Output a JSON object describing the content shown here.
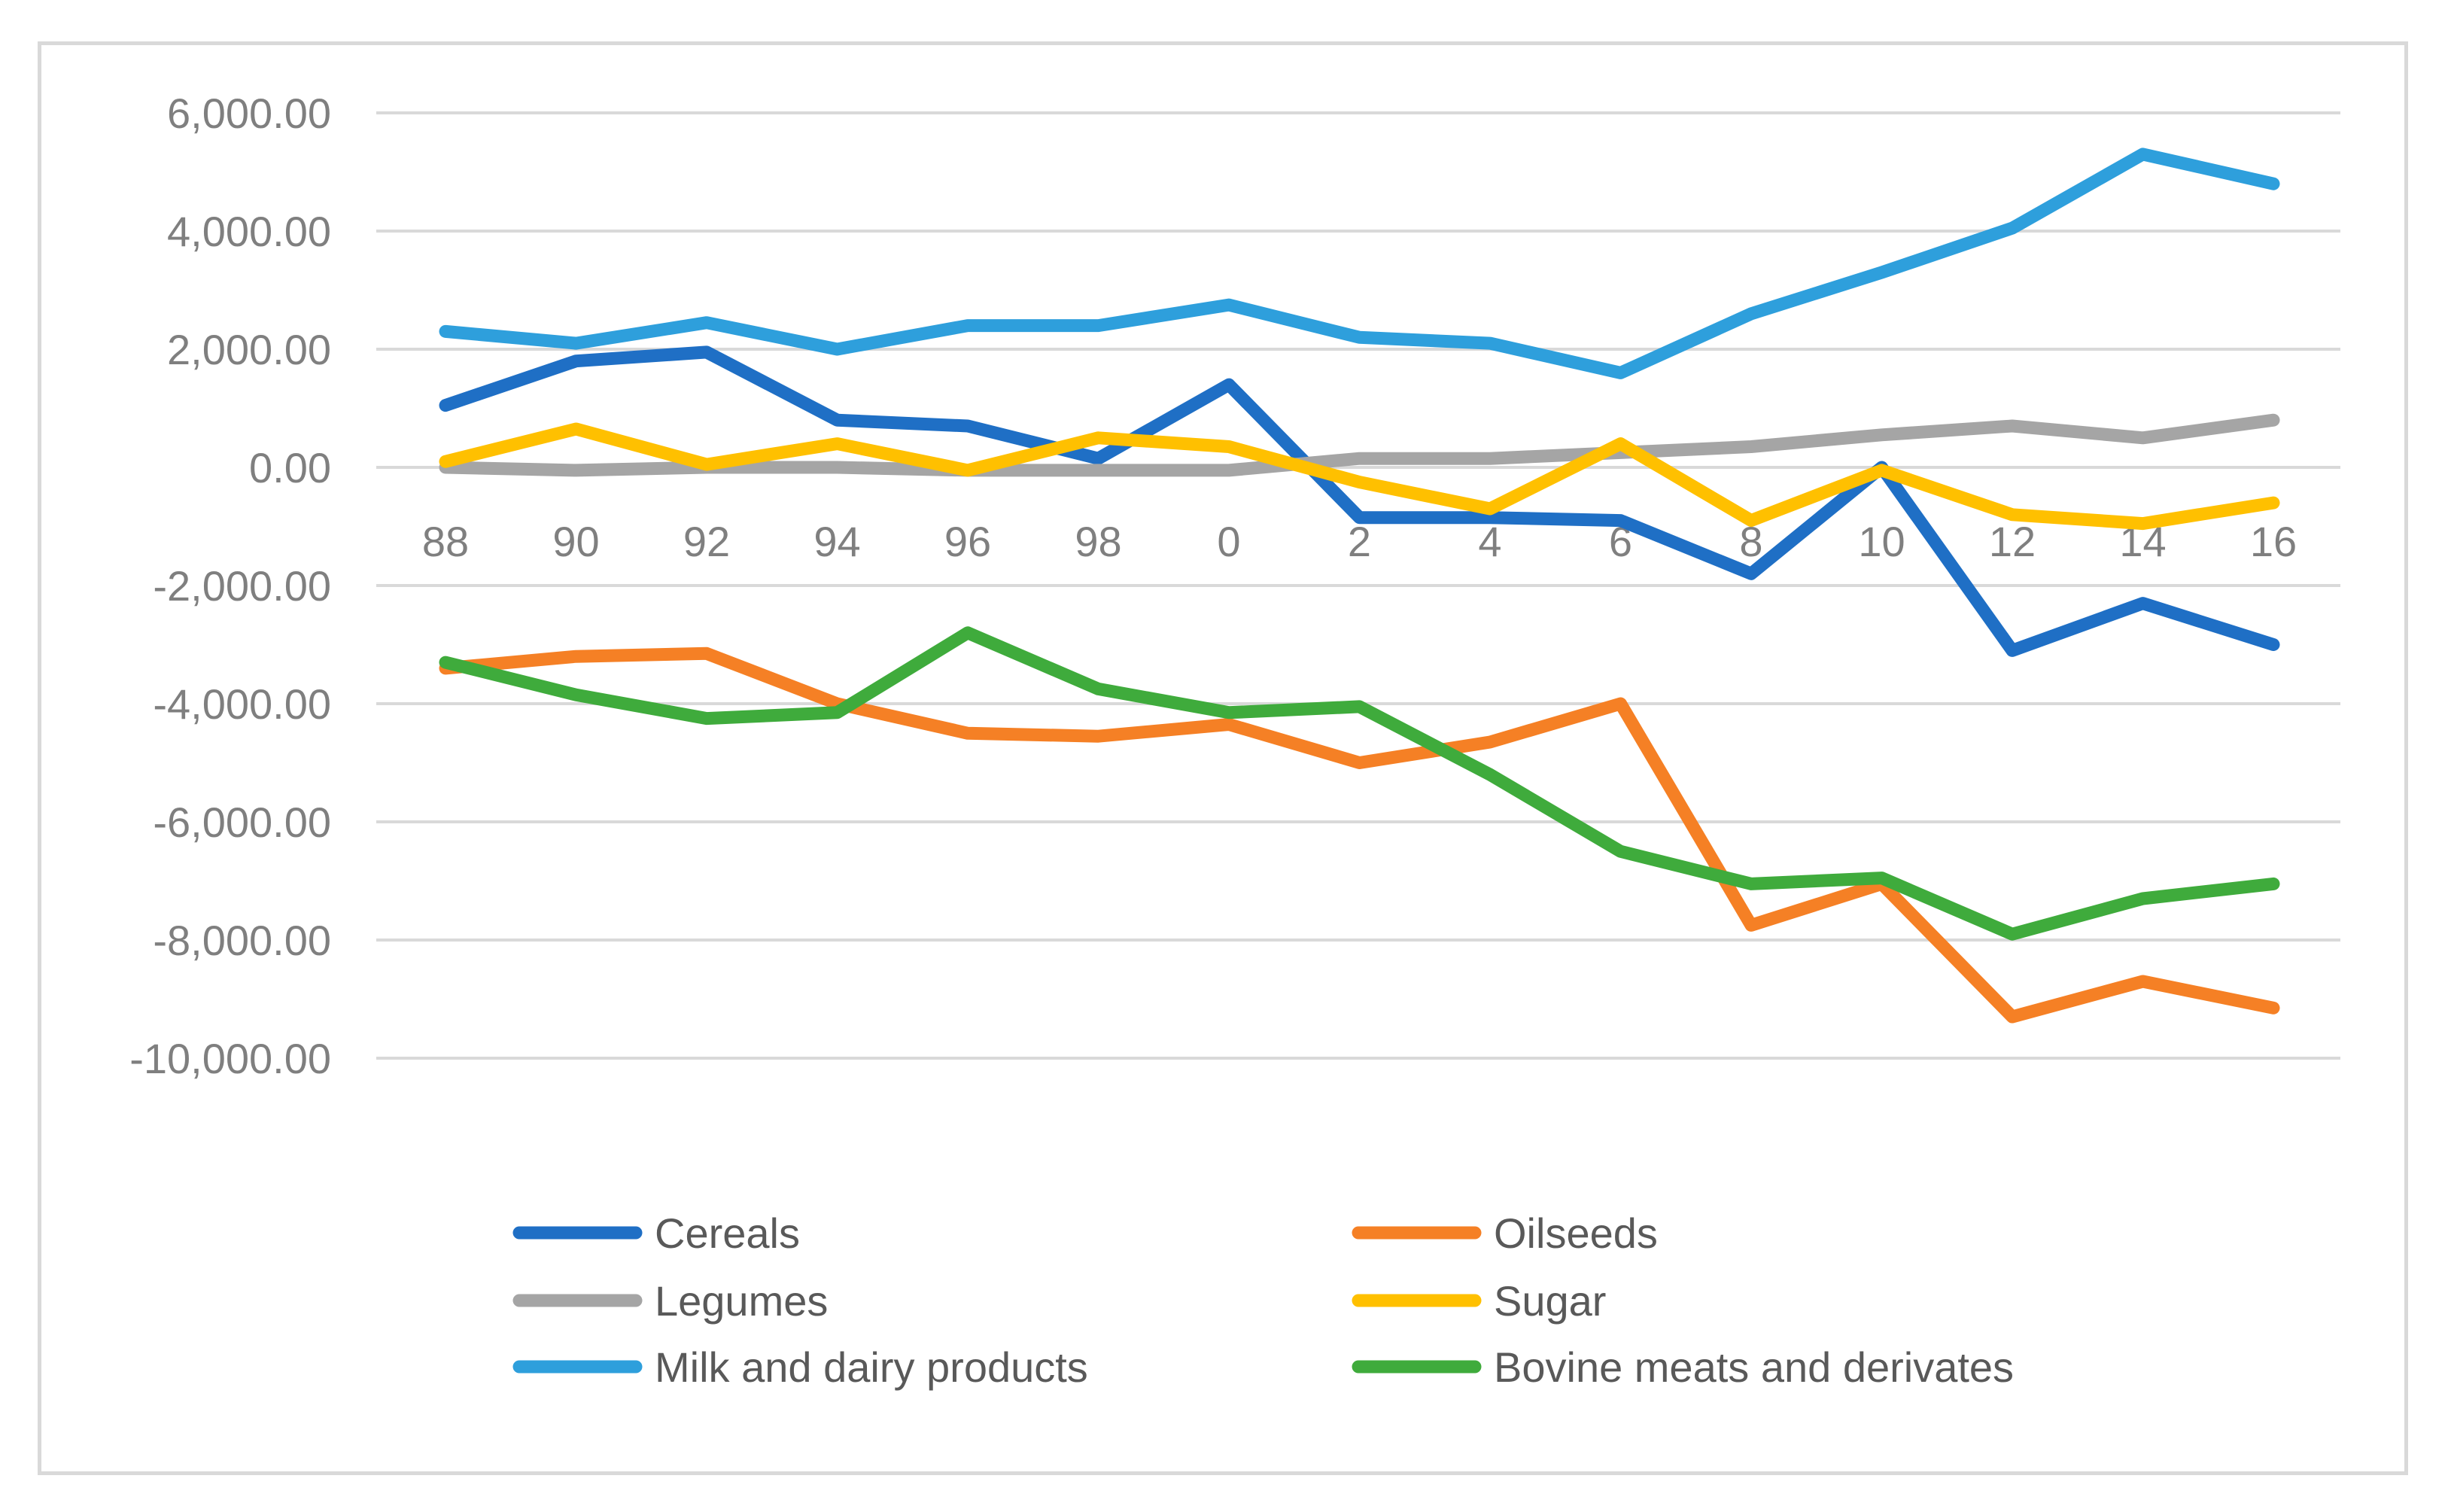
{
  "chart_data": {
    "type": "line",
    "title": "",
    "xlabel": "",
    "ylabel": "",
    "categories": [
      "88",
      "90",
      "92",
      "94",
      "96",
      "98",
      "0",
      "2",
      "4",
      "6",
      "8",
      "10",
      "12",
      "14",
      "16"
    ],
    "ylim": [
      -10000,
      6000
    ],
    "yticks": [
      6000,
      4000,
      2000,
      0,
      -2000,
      -4000,
      -6000,
      -8000,
      -10000
    ],
    "ytick_labels": [
      "6,000.00",
      "4,000.00",
      "2,000.00",
      "0.00",
      "-2,000.00",
      "-4,000.00",
      "-6,000.00",
      "-8,000.00",
      "-10,000.00"
    ],
    "grid": true,
    "legend_position": "bottom",
    "series": [
      {
        "name": "Cereals",
        "color": "#1f6fc5",
        "values": [
          1050,
          1800,
          1950,
          800,
          700,
          150,
          1400,
          -850,
          -850,
          -900,
          -1800,
          0,
          -3100,
          -2300,
          -3000
        ]
      },
      {
        "name": "Oilseeds",
        "color": "#f58025",
        "values": [
          -3400,
          -3200,
          -3150,
          -4000,
          -4500,
          -4550,
          -4350,
          -5000,
          -4650,
          -4000,
          -7750,
          -7050,
          -9300,
          -8700,
          -9150
        ]
      },
      {
        "name": "Legumes",
        "color": "#a5a5a5",
        "values": [
          0,
          -50,
          0,
          0,
          -50,
          -50,
          -50,
          150,
          150,
          250,
          350,
          550,
          700,
          500,
          800
        ]
      },
      {
        "name": "Sugar",
        "color": "#ffc000",
        "values": [
          100,
          650,
          50,
          400,
          -50,
          500,
          350,
          -250,
          -700,
          400,
          -900,
          -50,
          -800,
          -950,
          -600
        ]
      },
      {
        "name": "Milk and dairy products",
        "color": "#2e9fdc",
        "values": [
          2300,
          2100,
          2450,
          2000,
          2400,
          2400,
          2750,
          2200,
          2100,
          1600,
          2600,
          3300,
          4050,
          5300,
          4800
        ]
      },
      {
        "name": "Bovine meats and derivates",
        "color": "#3fab3c",
        "values": [
          -3300,
          -3850,
          -4250,
          -4150,
          -2800,
          -3750,
          -4150,
          -4050,
          -5200,
          -6500,
          -7050,
          -6950,
          -7900,
          -7300,
          -7050
        ]
      }
    ]
  }
}
